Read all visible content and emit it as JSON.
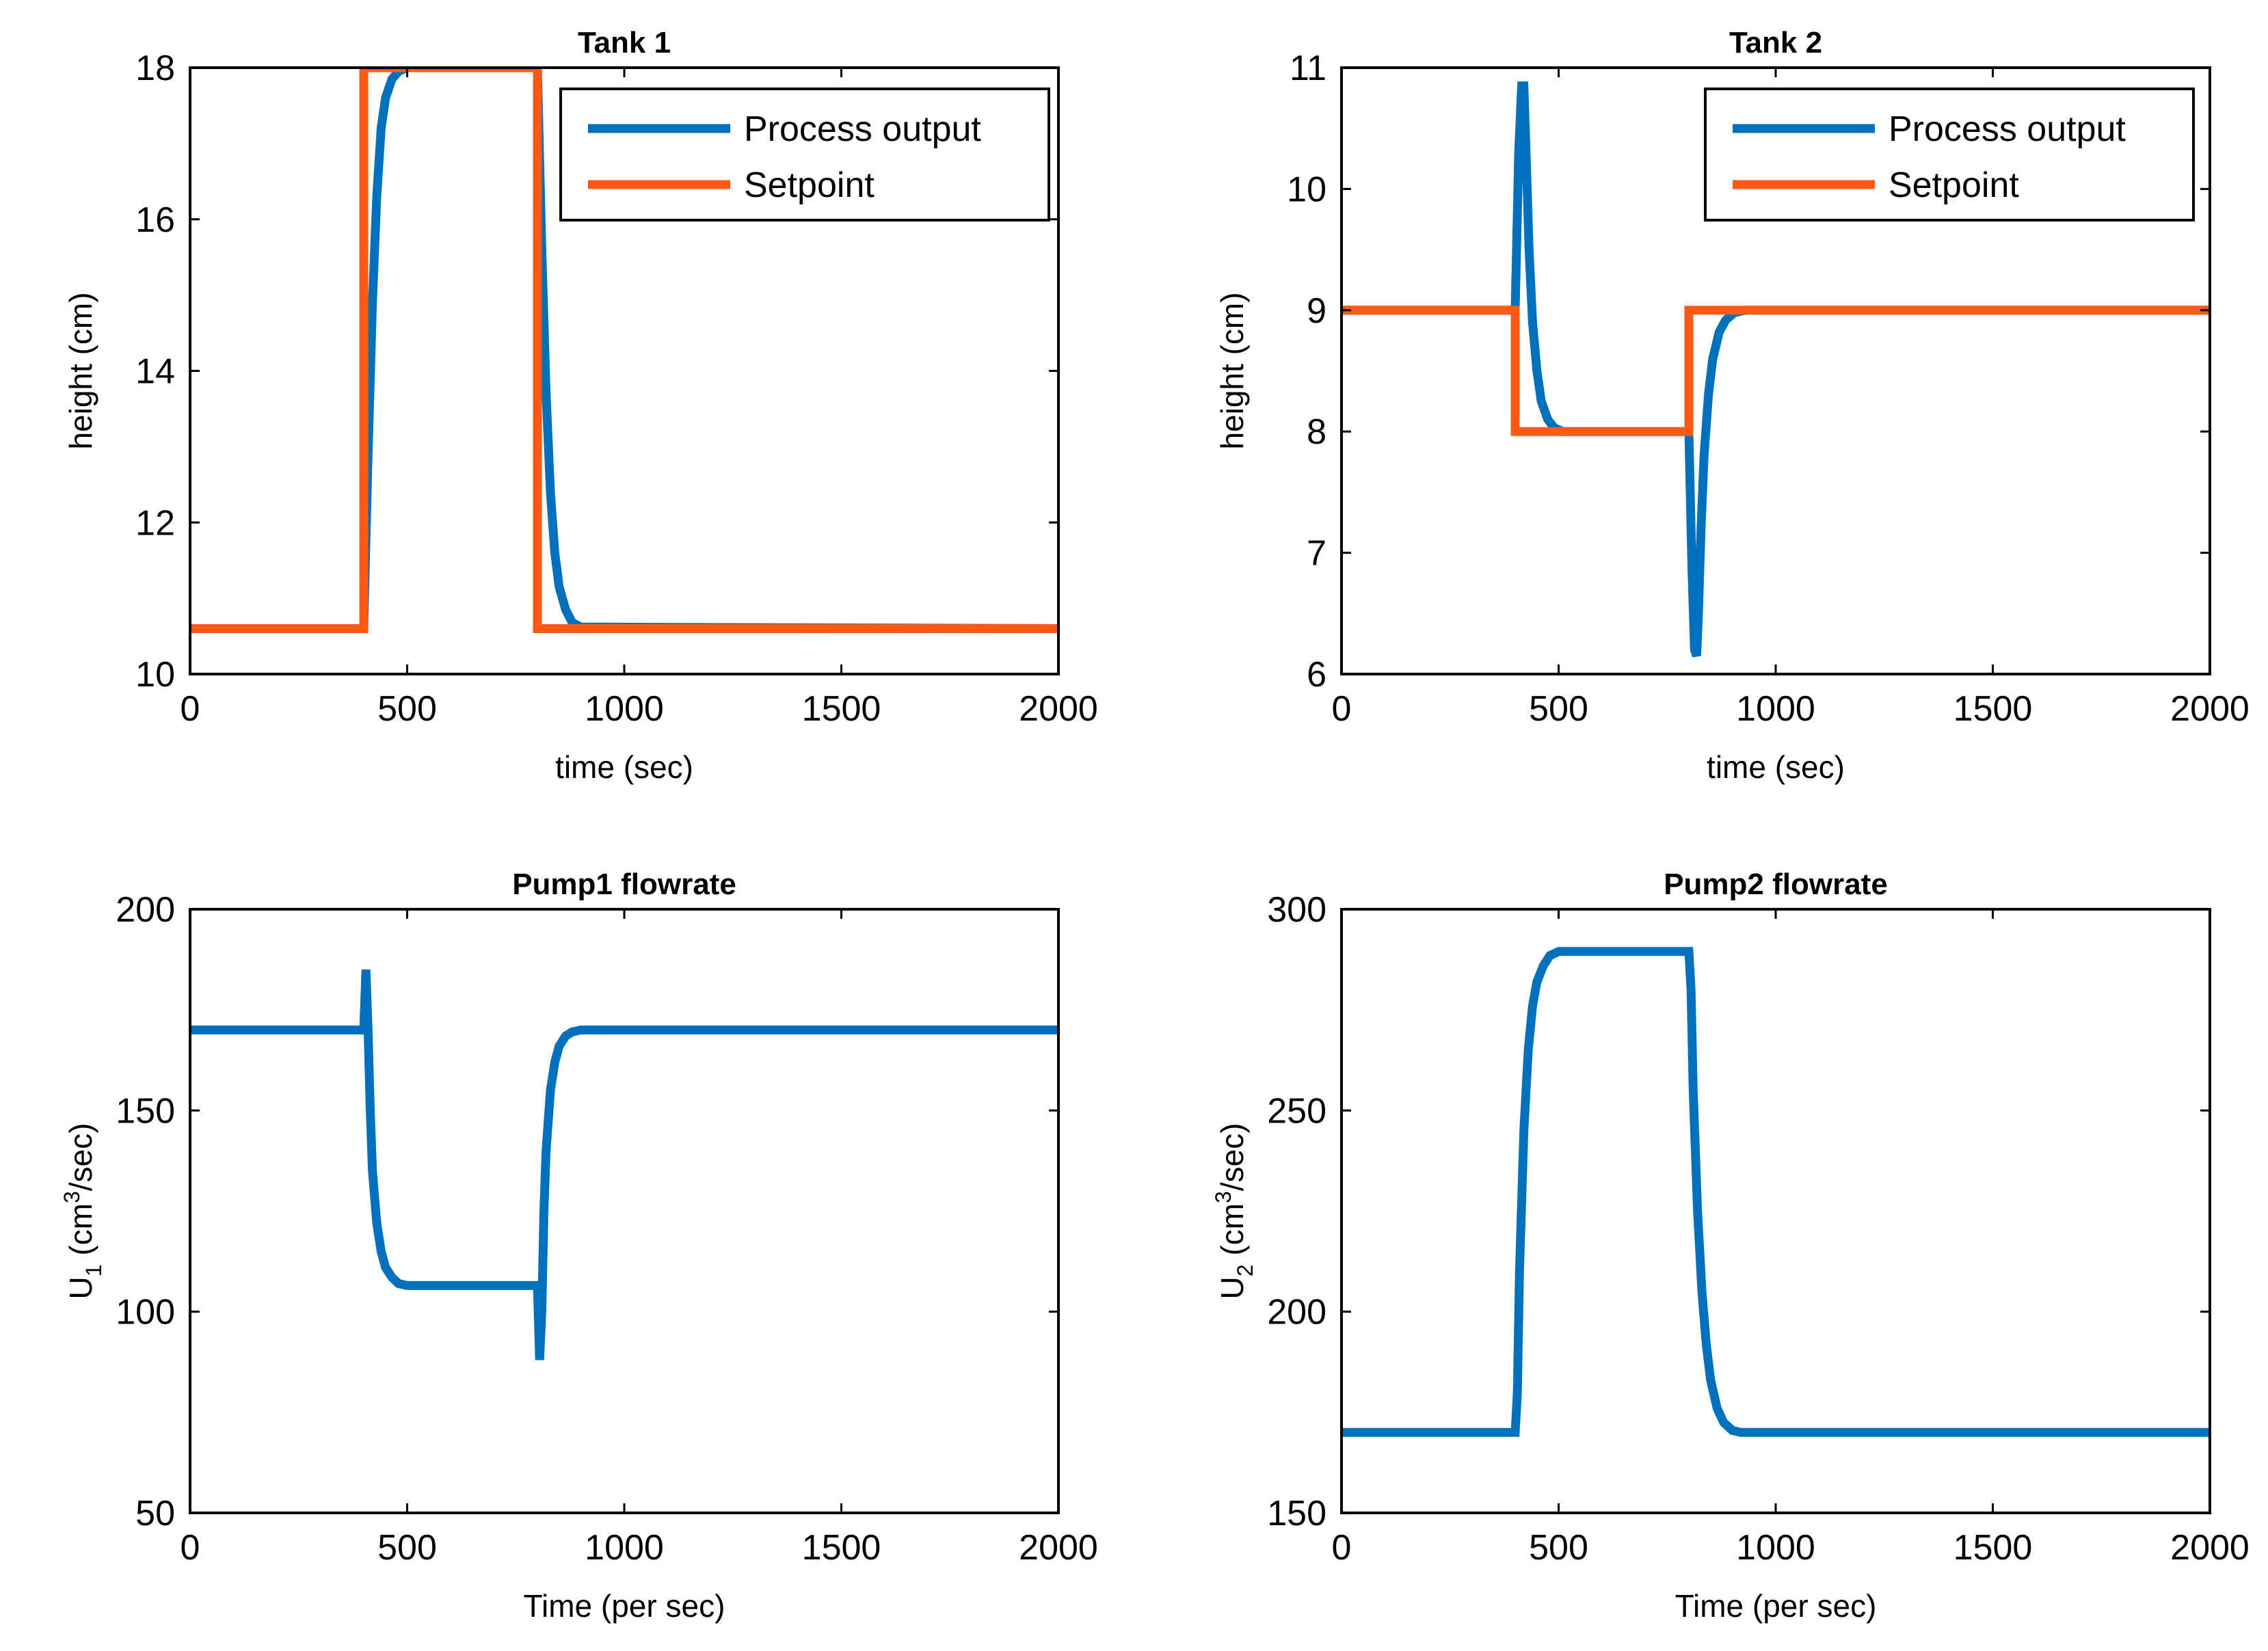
{
  "chart_data": [
    {
      "type": "line",
      "title": "Tank 1",
      "xlabel": "time (sec)",
      "ylabel": "height (cm)",
      "xlim": [
        0,
        2000
      ],
      "ylim": [
        10,
        18
      ],
      "xticks": [
        0,
        500,
        1000,
        1500,
        2000
      ],
      "yticks": [
        10,
        12,
        14,
        16,
        18
      ],
      "legend": {
        "placement": "top-right"
      },
      "series": [
        {
          "name": "Process output",
          "color": "#0072BD",
          "x": [
            0,
            400,
            410,
            420,
            430,
            440,
            450,
            465,
            480,
            500,
            800,
            810,
            820,
            830,
            840,
            850,
            865,
            880,
            900,
            2000
          ],
          "y": [
            10.6,
            10.6,
            12.9,
            14.9,
            16.3,
            17.2,
            17.6,
            17.85,
            17.95,
            18,
            18,
            15.6,
            13.7,
            12.4,
            11.6,
            11.15,
            10.85,
            10.68,
            10.62,
            10.6
          ]
        },
        {
          "name": "Setpoint",
          "color": "#FF5A14",
          "x": [
            0,
            400,
            400,
            800,
            800,
            2000
          ],
          "y": [
            10.6,
            10.6,
            18,
            18,
            10.6,
            10.6
          ]
        }
      ]
    },
    {
      "type": "line",
      "title": "Tank 2",
      "xlabel": "time (sec)",
      "ylabel": "height (cm)",
      "xlim": [
        0,
        2000
      ],
      "ylim": [
        6,
        11
      ],
      "xticks": [
        0,
        500,
        1000,
        1500,
        2000
      ],
      "yticks": [
        6,
        7,
        8,
        9,
        10,
        11
      ],
      "legend": {
        "placement": "top-right"
      },
      "series": [
        {
          "name": "Process output",
          "color": "#0072BD",
          "x": [
            0,
            400,
            408,
            415,
            420,
            425,
            432,
            440,
            450,
            460,
            475,
            490,
            510,
            800,
            807,
            813,
            818,
            822,
            828,
            835,
            845,
            855,
            870,
            885,
            905,
            930,
            2000
          ],
          "y": [
            9,
            9,
            10.3,
            10.85,
            10.85,
            10.3,
            9.5,
            8.9,
            8.5,
            8.25,
            8.1,
            8.03,
            8,
            8,
            6.9,
            6.2,
            6.15,
            6.5,
            7.2,
            7.8,
            8.3,
            8.6,
            8.82,
            8.92,
            8.98,
            9,
            9
          ]
        },
        {
          "name": "Setpoint",
          "color": "#FF5A14",
          "x": [
            0,
            400,
            400,
            800,
            800,
            2000
          ],
          "y": [
            9,
            9,
            8,
            8,
            9,
            9
          ]
        }
      ]
    },
    {
      "type": "line",
      "title": "Pump1 flowrate",
      "xlabel": "Time (per sec)",
      "ylabel_main": "U",
      "ylabel_sub": "1",
      "ylabel_mid": " (cm",
      "ylabel_sup": "3",
      "ylabel_end": "/sec)",
      "xlim": [
        0,
        2000
      ],
      "ylim": [
        50,
        200
      ],
      "xticks": [
        0,
        500,
        1000,
        1500,
        2000
      ],
      "yticks": [
        50,
        100,
        150,
        200
      ],
      "series": [
        {
          "name": "",
          "color": "#0072BD",
          "x": [
            0,
            400,
            405,
            410,
            415,
            420,
            430,
            440,
            450,
            465,
            480,
            500,
            800,
            805,
            810,
            815,
            820,
            830,
            840,
            850,
            865,
            880,
            900,
            920,
            2000
          ],
          "y": [
            170,
            170,
            185,
            170,
            150,
            135,
            122,
            115,
            111,
            108.5,
            107,
            106.5,
            106.5,
            88,
            100,
            125,
            140,
            155,
            162,
            166,
            168.5,
            169.5,
            170,
            170,
            170
          ]
        }
      ]
    },
    {
      "type": "line",
      "title": "Pump2 flowrate",
      "xlabel": "Time (per sec)",
      "ylabel_main": "U",
      "ylabel_sub": "2",
      "ylabel_mid": " (cm",
      "ylabel_sup": "3",
      "ylabel_end": "/sec)",
      "xlim": [
        0,
        2000
      ],
      "ylim": [
        150,
        300
      ],
      "xticks": [
        0,
        500,
        1000,
        1500,
        2000
      ],
      "yticks": [
        150,
        200,
        250,
        300
      ],
      "series": [
        {
          "name": "",
          "color": "#0072BD",
          "x": [
            0,
            400,
            405,
            410,
            420,
            430,
            440,
            450,
            465,
            480,
            500,
            800,
            805,
            810,
            820,
            830,
            840,
            850,
            865,
            880,
            900,
            920,
            2000
          ],
          "y": [
            170,
            170,
            180,
            210,
            245,
            265,
            276,
            282,
            286,
            288.5,
            289.5,
            289.5,
            280,
            255,
            225,
            205,
            192,
            183,
            176,
            172.5,
            170.5,
            170,
            170
          ]
        }
      ]
    }
  ]
}
